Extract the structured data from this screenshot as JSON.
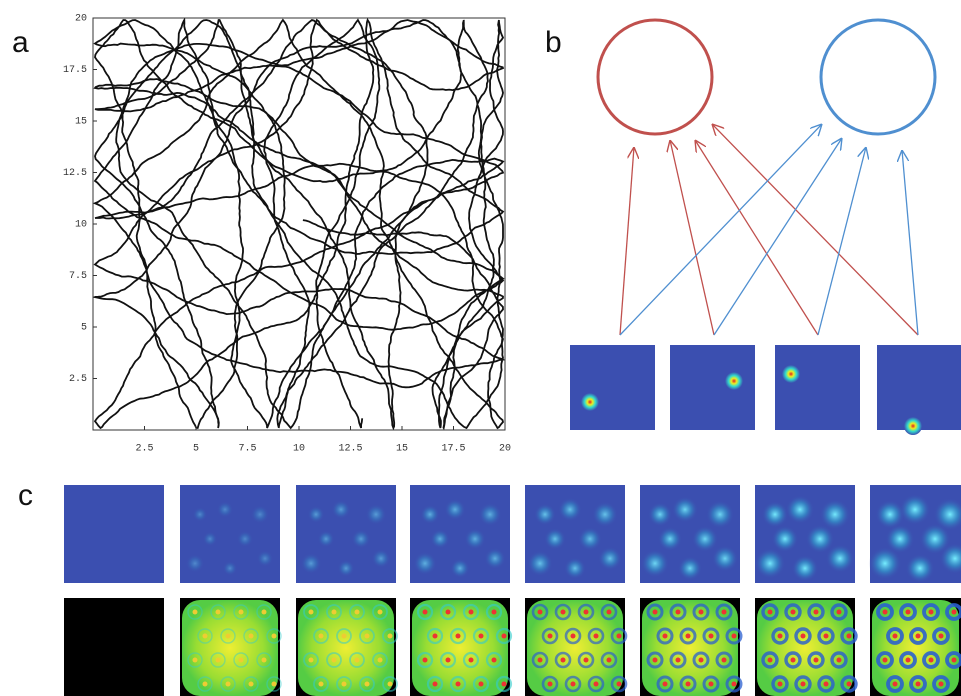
{
  "labels": {
    "a": "a",
    "b": "b",
    "c": "c"
  },
  "chart_data": {
    "type": "trajectory",
    "xlim": [
      0,
      20
    ],
    "ylim": [
      0,
      20
    ],
    "xticks": [
      2.5,
      5,
      7.5,
      10,
      12.5,
      15,
      17.5,
      20
    ],
    "yticks": [
      2.5,
      5,
      7.5,
      10,
      12.5,
      15,
      17.5,
      20
    ]
  }
}
